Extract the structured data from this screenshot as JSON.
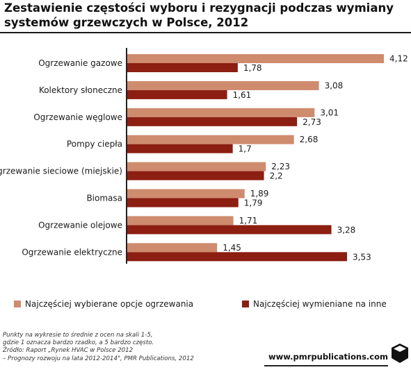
{
  "title_lines": [
    "Zestawienie częstości wyboru i rezygnacji podczas wymiany",
    "systemów grzewczych w Polsce, 2012"
  ],
  "colors": {
    "series1": "#cf8b6e",
    "series2": "#8c1e12",
    "axis": "#222222"
  },
  "chart_data": {
    "type": "bar",
    "orientation": "horizontal",
    "categories": [
      "Ogrzewanie gazowe",
      "Kolektory słoneczne",
      "Ogrzewanie węglowe",
      "Pompy ciepła",
      "Ogrzewanie sieciowe (miejskie)",
      "Biomasa",
      "Ogrzewanie olejowe",
      "Ogrzewanie elektryczne"
    ],
    "series": [
      {
        "name": "Najczęściej wybierane opcje ogrzewania",
        "values": [
          4.12,
          3.08,
          3.01,
          2.68,
          2.23,
          1.89,
          1.71,
          1.45
        ],
        "labels": [
          "4,12",
          "3,08",
          "3,01",
          "2,68",
          "2,23",
          "1,89",
          "1,71",
          "1,45"
        ]
      },
      {
        "name": "Najczęściej wymieniane na inne",
        "values": [
          1.78,
          1.61,
          2.73,
          1.7,
          2.2,
          1.79,
          3.28,
          3.53
        ],
        "labels": [
          "1,78",
          "1,61",
          "2,73",
          "1,7",
          "2,2",
          "1,79",
          "3,28",
          "3,53"
        ]
      }
    ],
    "xlim": [
      0,
      4.12
    ],
    "legend_position": "bottom",
    "grid": false
  },
  "notes": [
    "Punkty na wykresie to średnie z ocen na skali 1-5,",
    "gdzie 1 oznacza bardzo rzadko, a 5 bardzo często.",
    "Źródło: Raport „Rynek HVAC w Polsce 2012",
    "– Prognozy rozwoju na lata 2012-2014\", PMR Publications, 2012"
  ],
  "website": "www.pmrpublications.com",
  "logo_icon": "pmr-cube-logo"
}
